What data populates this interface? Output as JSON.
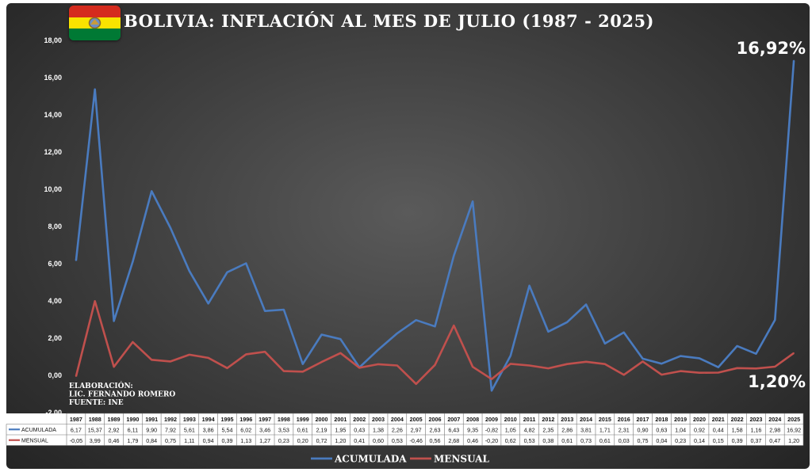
{
  "title": "BOLIVIA: INFLACIÓN AL MES DE JULIO (1987 - 2025)",
  "flag": {
    "colors": [
      "#d52b1e",
      "#f9e300",
      "#007934"
    ],
    "emblem": "coat-of-arms-icon"
  },
  "credits": [
    "ELABORACIÓN:",
    "LIC. FERNANDO ROMERO",
    "FUENTE: INE"
  ],
  "last_values": {
    "acumulada": "16,92%",
    "mensual": "1,20%"
  },
  "chart_data": {
    "type": "line",
    "title": "BOLIVIA: INFLACIÓN AL MES DE JULIO (1987 - 2025)",
    "xlabel": "",
    "ylabel": "",
    "ylim": [
      -2,
      18
    ],
    "yticks": [
      "-2,00",
      "0,00",
      "2,00",
      "4,00",
      "6,00",
      "8,00",
      "10,00",
      "12,00",
      "14,00",
      "16,00",
      "18,00"
    ],
    "grid": false,
    "legend_position": "bottom",
    "categories": [
      "1987",
      "1988",
      "1989",
      "1990",
      "1991",
      "1992",
      "1993",
      "1994",
      "1995",
      "1996",
      "1997",
      "1998",
      "1999",
      "2000",
      "2001",
      "2002",
      "2003",
      "2004",
      "2005",
      "2006",
      "2007",
      "2008",
      "2009",
      "2010",
      "2011",
      "2012",
      "2013",
      "2014",
      "2015",
      "2016",
      "2017",
      "2018",
      "2019",
      "2020",
      "2021",
      "2022",
      "2023",
      "2024",
      "2025"
    ],
    "series": [
      {
        "name": "ACUMULADA",
        "color": "#4a7bbf",
        "values": [
          6.17,
          15.37,
          2.92,
          6.11,
          9.9,
          7.92,
          5.61,
          3.86,
          5.54,
          6.02,
          3.46,
          3.53,
          0.61,
          2.19,
          1.95,
          0.43,
          1.38,
          2.26,
          2.97,
          2.63,
          6.43,
          9.35,
          -0.82,
          1.05,
          4.82,
          2.35,
          2.86,
          3.81,
          1.71,
          2.31,
          0.9,
          0.63,
          1.04,
          0.92,
          0.44,
          1.58,
          1.16,
          2.98,
          16.92
        ],
        "labels": [
          "6,17",
          "15,37",
          "2,92",
          "6,11",
          "9,90",
          "7,92",
          "5,61",
          "3,86",
          "5,54",
          "6,02",
          "3,46",
          "3,53",
          "0,61",
          "2,19",
          "1,95",
          "0,43",
          "1,38",
          "2,26",
          "2,97",
          "2,63",
          "6,43",
          "9,35",
          "-0,82",
          "1,05",
          "4,82",
          "2,35",
          "2,86",
          "3,81",
          "1,71",
          "2,31",
          "0,90",
          "0,63",
          "1,04",
          "0,92",
          "0,44",
          "1,58",
          "1,16",
          "2,98",
          "16,92"
        ]
      },
      {
        "name": "MENSUAL",
        "color": "#c0504d",
        "values": [
          -0.05,
          3.99,
          0.46,
          1.79,
          0.84,
          0.75,
          1.11,
          0.94,
          0.39,
          1.13,
          1.27,
          0.23,
          0.2,
          0.72,
          1.2,
          0.41,
          0.6,
          0.53,
          -0.46,
          0.56,
          2.68,
          0.46,
          -0.2,
          0.62,
          0.53,
          0.38,
          0.61,
          0.73,
          0.61,
          0.03,
          0.75,
          0.04,
          0.23,
          0.14,
          0.15,
          0.39,
          0.37,
          0.47,
          1.2
        ],
        "labels": [
          "-0,05",
          "3,99",
          "0,46",
          "1,79",
          "0,84",
          "0,75",
          "1,11",
          "0,94",
          "0,39",
          "1,13",
          "1,27",
          "0,23",
          "0,20",
          "0,72",
          "1,20",
          "0,41",
          "0,60",
          "0,53",
          "-0,46",
          "0,56",
          "2,68",
          "0,46",
          "-0,20",
          "0,62",
          "0,53",
          "0,38",
          "0,61",
          "0,73",
          "0,61",
          "0,03",
          "0,75",
          "0,04",
          "0,23",
          "0,14",
          "0,15",
          "0,39",
          "0,37",
          "0,47",
          "1,20"
        ]
      }
    ]
  }
}
